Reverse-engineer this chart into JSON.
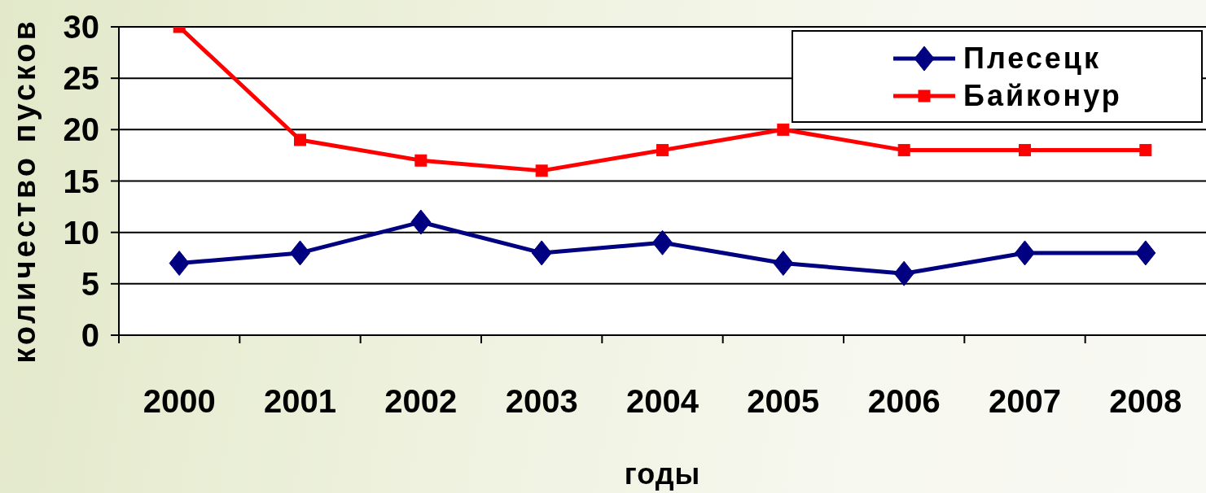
{
  "chart_data": {
    "type": "line",
    "xlabel": "годы",
    "ylabel": "количество пусков",
    "categories": [
      "2000",
      "2001",
      "2002",
      "2003",
      "2004",
      "2005",
      "2006",
      "2007",
      "2008"
    ],
    "series": [
      {
        "name": "Плесецк",
        "color": "#000080",
        "marker": "diamond",
        "values": [
          7,
          8,
          11,
          8,
          9,
          7,
          6,
          8,
          8
        ]
      },
      {
        "name": "Байконур",
        "color": "#ff0000",
        "marker": "square",
        "values": [
          30,
          19,
          17,
          16,
          18,
          20,
          18,
          18,
          18
        ]
      }
    ],
    "ylim": [
      0,
      30
    ],
    "yticks": [
      0,
      5,
      10,
      15,
      20,
      25,
      30
    ],
    "grid": "y",
    "legend": "top right"
  }
}
